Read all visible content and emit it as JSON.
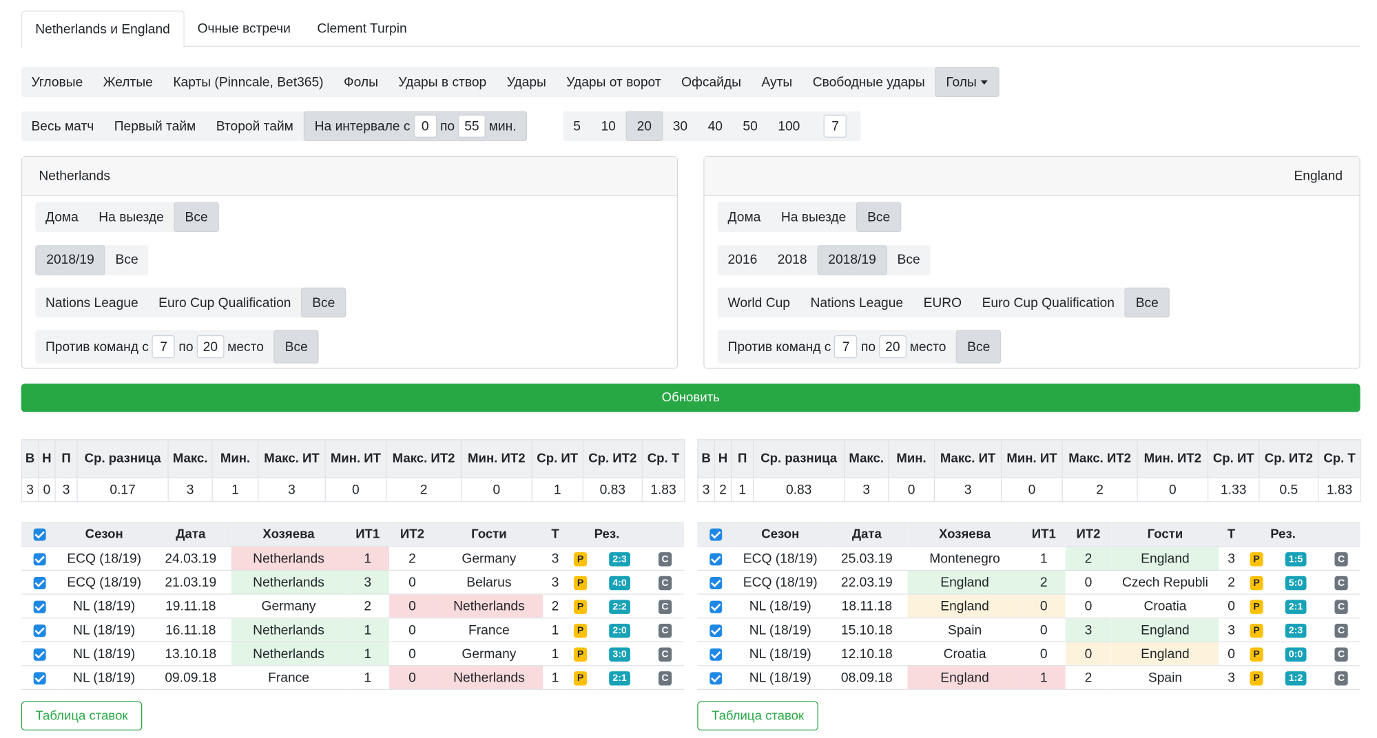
{
  "tabs": {
    "items": [
      "Netherlands и England",
      "Очные встречи",
      "Clement Turpin"
    ],
    "active": 0
  },
  "stat_types": {
    "items": [
      "Угловые",
      "Желтые",
      "Карты (Pinncale, Bet365)",
      "Фолы",
      "Удары в створ",
      "Удары",
      "Удары от ворот",
      "Офсайды",
      "Ауты",
      "Свободные удары",
      "Голы"
    ],
    "active": 10
  },
  "periods": {
    "items": [
      "Весь матч",
      "Первый тайм",
      "Второй тайм"
    ],
    "interval": {
      "prefix": "На интервале с",
      "from": "0",
      "middle": "по",
      "to": "55",
      "suffix": "мин."
    }
  },
  "match_counts": {
    "items": [
      "5",
      "10",
      "20",
      "30",
      "40",
      "50",
      "100"
    ],
    "active": 2,
    "custom": "7"
  },
  "teams": [
    {
      "name": "Netherlands",
      "filters": [
        {
          "items": [
            "Дома",
            "На выезде",
            "Все"
          ],
          "active": 2
        },
        {
          "items": [
            "2018/19",
            "Все"
          ],
          "active": 0
        },
        {
          "items": [
            "Nations League",
            "Euro Cup Qualification",
            "Все"
          ],
          "active": 2
        }
      ],
      "rank": {
        "prefix": "Против команд с",
        "from": "7",
        "middle": "по",
        "to": "20",
        "suffix": "место",
        "all": "Все"
      }
    },
    {
      "name": "England",
      "filters": [
        {
          "items": [
            "Дома",
            "На выезде",
            "Все"
          ],
          "active": 2
        },
        {
          "items": [
            "2016",
            "2018",
            "2018/19",
            "Все"
          ],
          "active": 2
        },
        {
          "items": [
            "World Cup",
            "Nations League",
            "EURO",
            "Euro Cup Qualification",
            "Все"
          ],
          "active": 4
        }
      ],
      "rank": {
        "prefix": "Против команд с",
        "from": "7",
        "middle": "по",
        "to": "20",
        "suffix": "место",
        "all": "Все"
      }
    }
  ],
  "update_button": "Обновить",
  "summary": [
    {
      "headers": [
        "В",
        "Н",
        "П",
        "Ср. разница",
        "Макс.",
        "Мин.",
        "Макс. ИТ",
        "Мин. ИТ",
        "Макс. ИТ2",
        "Мин. ИТ2",
        "Ср. ИТ",
        "Ср. ИТ2",
        "Ср. Т"
      ],
      "values": [
        3,
        0,
        3,
        0.17,
        3,
        1,
        3,
        0,
        2,
        0,
        1,
        0.83,
        1.83
      ]
    },
    {
      "headers": [
        "В",
        "Н",
        "П",
        "Ср. разница",
        "Макс.",
        "Мин.",
        "Макс. ИТ",
        "Мин. ИТ",
        "Макс. ИТ2",
        "Мин. ИТ2",
        "Ср. ИТ",
        "Ср. ИТ2",
        "Ср. Т"
      ],
      "values": [
        3,
        2,
        1,
        0.83,
        3,
        0,
        3,
        0,
        2,
        0,
        1.33,
        0.5,
        1.83
      ]
    }
  ],
  "matches": [
    {
      "headers": [
        "Сезон",
        "Дата",
        "Хозяева",
        "ИТ1",
        "ИТ2",
        "Гости",
        "Т",
        "Рез."
      ],
      "bet_button": "Таблица ставок",
      "rows": [
        {
          "season": "ECQ (18/19)",
          "date": "24.03.19",
          "home": "Netherlands",
          "it1": 1,
          "it2": 2,
          "away": "Germany",
          "t": 3,
          "p": "P",
          "result": "2:3",
          "c": "C",
          "colors": [
            "#f9dadd",
            "#f9dadd",
            null,
            null
          ]
        },
        {
          "season": "ECQ (18/19)",
          "date": "21.03.19",
          "home": "Netherlands",
          "it1": 3,
          "it2": 0,
          "away": "Belarus",
          "t": 3,
          "p": "P",
          "result": "4:0",
          "c": "C",
          "colors": [
            "#e2f5e7",
            "#e2f5e7",
            null,
            null
          ]
        },
        {
          "season": "NL (18/19)",
          "date": "19.11.18",
          "home": "Germany",
          "it1": 2,
          "it2": 0,
          "away": "Netherlands",
          "t": 2,
          "p": "P",
          "result": "2:2",
          "c": "C",
          "colors": [
            null,
            null,
            "#f9dadd",
            "#f9dadd"
          ]
        },
        {
          "season": "NL (18/19)",
          "date": "16.11.18",
          "home": "Netherlands",
          "it1": 1,
          "it2": 0,
          "away": "France",
          "t": 1,
          "p": "P",
          "result": "2:0",
          "c": "C",
          "colors": [
            "#e2f5e7",
            "#e2f5e7",
            null,
            null
          ]
        },
        {
          "season": "NL (18/19)",
          "date": "13.10.18",
          "home": "Netherlands",
          "it1": 1,
          "it2": 0,
          "away": "Germany",
          "t": 1,
          "p": "P",
          "result": "3:0",
          "c": "C",
          "colors": [
            "#e2f5e7",
            "#e2f5e7",
            null,
            null
          ]
        },
        {
          "season": "NL (18/19)",
          "date": "09.09.18",
          "home": "France",
          "it1": 1,
          "it2": 0,
          "away": "Netherlands",
          "t": 1,
          "p": "P",
          "result": "2:1",
          "c": "C",
          "colors": [
            null,
            null,
            "#f9dadd",
            "#f9dadd"
          ]
        }
      ]
    },
    {
      "headers": [
        "Сезон",
        "Дата",
        "Хозяева",
        "ИТ1",
        "ИТ2",
        "Гости",
        "Т",
        "Рез."
      ],
      "bet_button": "Таблица ставок",
      "rows": [
        {
          "season": "ECQ (18/19)",
          "date": "25.03.19",
          "home": "Montenegro",
          "it1": 1,
          "it2": 2,
          "away": "England",
          "t": 3,
          "p": "P",
          "result": "1:5",
          "c": "C",
          "colors": [
            null,
            null,
            "#e2f5e7",
            "#e2f5e7"
          ]
        },
        {
          "season": "ECQ (18/19)",
          "date": "22.03.19",
          "home": "England",
          "it1": 2,
          "it2": 0,
          "away": "Czech Republi",
          "t": 2,
          "p": "P",
          "result": "5:0",
          "c": "C",
          "colors": [
            "#e2f5e7",
            "#e2f5e7",
            null,
            null
          ]
        },
        {
          "season": "NL (18/19)",
          "date": "18.11.18",
          "home": "England",
          "it1": 0,
          "it2": 0,
          "away": "Croatia",
          "t": 0,
          "p": "P",
          "result": "2:1",
          "c": "C",
          "colors": [
            "#fdf3dd",
            "#fdf3dd",
            null,
            null
          ]
        },
        {
          "season": "NL (18/19)",
          "date": "15.10.18",
          "home": "Spain",
          "it1": 0,
          "it2": 3,
          "away": "England",
          "t": 3,
          "p": "P",
          "result": "2:3",
          "c": "C",
          "colors": [
            null,
            null,
            "#e2f5e7",
            "#e2f5e7"
          ]
        },
        {
          "season": "NL (18/19)",
          "date": "12.10.18",
          "home": "Croatia",
          "it1": 0,
          "it2": 0,
          "away": "England",
          "t": 0,
          "p": "P",
          "result": "0:0",
          "c": "C",
          "colors": [
            null,
            null,
            "#fdf3dd",
            "#fdf3dd"
          ]
        },
        {
          "season": "NL (18/19)",
          "date": "08.09.18",
          "home": "England",
          "it1": 1,
          "it2": 2,
          "away": "Spain",
          "t": 3,
          "p": "P",
          "result": "1:2",
          "c": "C",
          "colors": [
            "#f9dadd",
            "#f9dadd",
            null,
            null
          ]
        }
      ]
    }
  ]
}
